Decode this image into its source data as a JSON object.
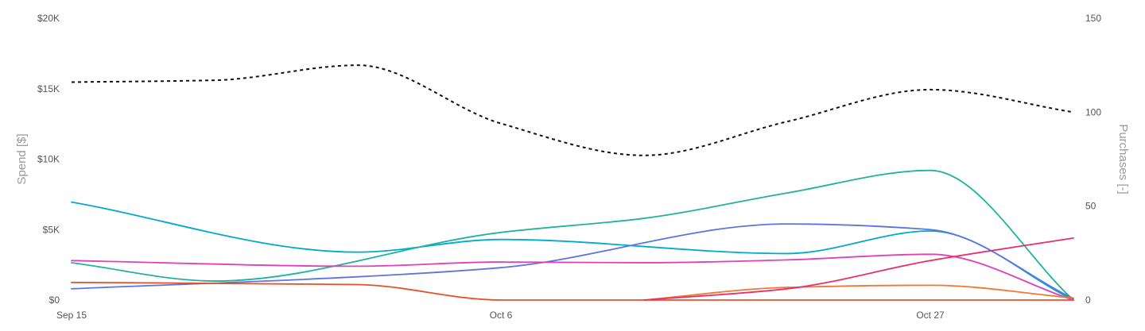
{
  "chart_data": {
    "type": "line",
    "xlabel": "",
    "ylabel": "Spend [$]",
    "y2label": "Purchases [-]",
    "x_ticks": [
      {
        "x": 0,
        "label": "Sep 15"
      },
      {
        "x": 3,
        "label": "Oct 6"
      },
      {
        "x": 6,
        "label": "Oct 27"
      }
    ],
    "xlim": [
      0,
      7
    ],
    "ylim": [
      0,
      20000
    ],
    "y2lim": [
      0,
      150
    ],
    "y_ticks": [
      {
        "v": 0,
        "label": "$0"
      },
      {
        "v": 5000,
        "label": "$5K"
      },
      {
        "v": 10000,
        "label": "$10K"
      },
      {
        "v": 15000,
        "label": "$15K"
      },
      {
        "v": 20000,
        "label": "$20K"
      }
    ],
    "y2_ticks": [
      {
        "v": 0,
        "label": "0"
      },
      {
        "v": 50,
        "label": "50"
      },
      {
        "v": 100,
        "label": "100"
      },
      {
        "v": 150,
        "label": "150"
      }
    ],
    "grid": false,
    "legend": false,
    "series": [
      {
        "color": "#00aacc",
        "axis": "left",
        "style": "solid",
        "x": [
          0,
          2,
          3,
          5,
          6,
          7
        ],
        "values": [
          6950,
          3400,
          4300,
          3300,
          4900,
          0
        ]
      },
      {
        "color": "#20b2a0",
        "axis": "left",
        "style": "solid",
        "x": [
          0,
          1,
          3,
          4,
          5,
          6,
          7
        ],
        "values": [
          2650,
          1350,
          4800,
          5800,
          7600,
          9200,
          0
        ]
      },
      {
        "color": "#5f73e0",
        "axis": "left",
        "style": "solid",
        "x": [
          0,
          2,
          3,
          5,
          6,
          7
        ],
        "values": [
          800,
          1650,
          2300,
          5400,
          5000,
          100
        ]
      },
      {
        "color": "#e040b8",
        "axis": "left",
        "style": "solid",
        "x": [
          0,
          2,
          3,
          4,
          5,
          6,
          7
        ],
        "values": [
          2800,
          2400,
          2700,
          2650,
          2850,
          3250,
          0
        ]
      },
      {
        "color": "#e8502a",
        "axis": "left",
        "style": "solid",
        "x": [
          0,
          2,
          3,
          4,
          7
        ],
        "values": [
          1250,
          1100,
          0,
          0,
          0
        ]
      },
      {
        "color": "#f07830",
        "axis": "left",
        "style": "solid",
        "x": [
          4,
          5,
          6,
          7
        ],
        "values": [
          0,
          900,
          1050,
          150
        ]
      },
      {
        "color": "#e8306a",
        "axis": "left",
        "style": "solid",
        "x": [
          4,
          5,
          6,
          7
        ],
        "values": [
          0,
          800,
          2800,
          4400
        ]
      },
      {
        "color": "#111111",
        "axis": "right",
        "style": "dashed",
        "x": [
          0,
          1,
          2,
          3,
          4,
          5,
          6,
          7
        ],
        "values": [
          116,
          117,
          125,
          94,
          77,
          95,
          112,
          100
        ]
      }
    ]
  }
}
